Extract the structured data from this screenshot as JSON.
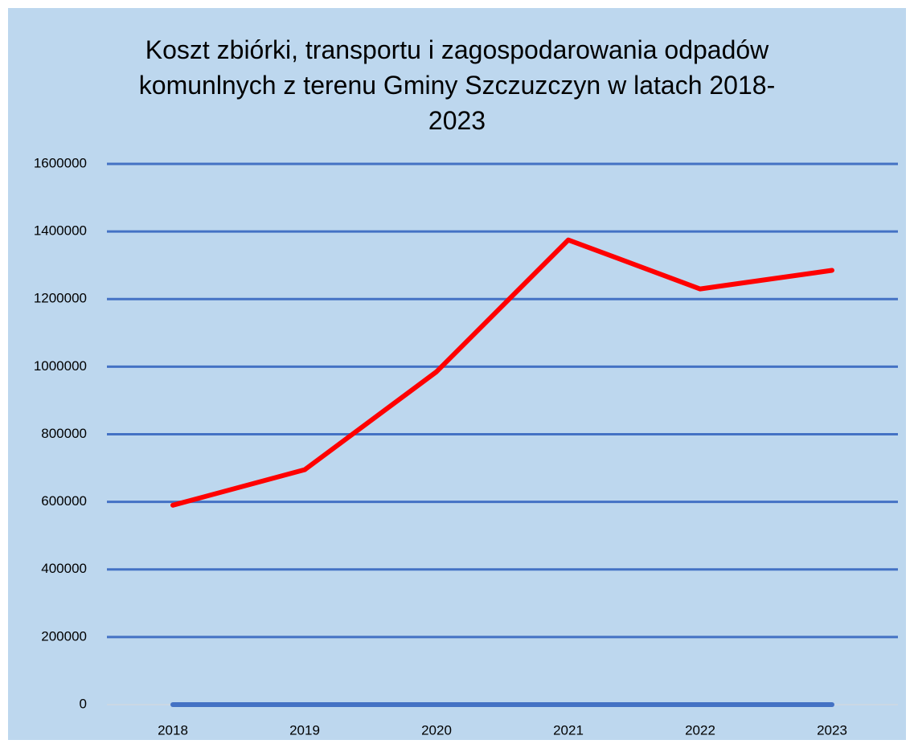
{
  "chart_data": {
    "type": "line",
    "title": "Koszt zbiórki, transportu i zagospodarowania odpadów komunlnych z terenu Gminy Szczuzczyn w latach 2018-2023",
    "categories": [
      "2018",
      "2019",
      "2020",
      "2021",
      "2022",
      "2023"
    ],
    "series": [
      {
        "color": "#ff0000",
        "values": [
          590000,
          695000,
          985000,
          1375000,
          1230000,
          1285000
        ]
      },
      {
        "color": "#4472c4",
        "values": [
          0,
          0,
          0,
          0,
          0,
          0
        ]
      }
    ],
    "ylim": [
      0,
      1600000
    ],
    "yticks": [
      0,
      200000,
      400000,
      600000,
      800000,
      1000000,
      1200000,
      1400000,
      1600000
    ],
    "grid": true,
    "background": "#bdd7ee",
    "grid_color": "#4472c4"
  }
}
